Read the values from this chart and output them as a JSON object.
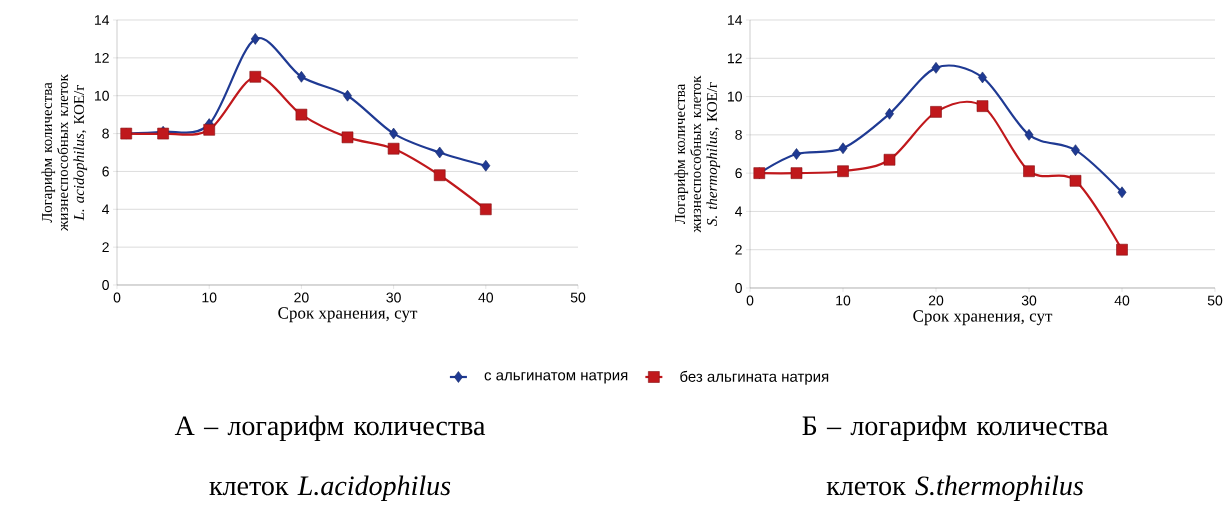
{
  "chart_data": [
    {
      "type": "line",
      "xlabel": "Срок хранения, сут",
      "ylabel": "Логарифм количества жизнеспособных клеток *L. acidophilus*, КОЕ/г",
      "x": [
        1,
        5,
        10,
        15,
        20,
        25,
        30,
        35,
        40
      ],
      "series": [
        {
          "name": "с альгинатом натрия",
          "color": "#1f3a93",
          "marker": "diamond",
          "values": [
            8,
            8.1,
            8.5,
            13,
            11,
            10,
            8,
            7,
            6.3
          ]
        },
        {
          "name": "без альгината натрия",
          "color": "#c0181c",
          "marker": "square",
          "values": [
            8,
            8,
            8.2,
            11,
            9,
            7.8,
            7.2,
            5.8,
            4
          ]
        }
      ],
      "xlim": [
        0,
        50
      ],
      "xticks": [
        0,
        10,
        20,
        30,
        40,
        50
      ],
      "ylim": [
        0,
        14
      ],
      "yticks": [
        0,
        2,
        4,
        6,
        8,
        10,
        12,
        14
      ],
      "grid": "y",
      "legend": "bottom",
      "annotations": [
        "А – логарифм количества клеток *L.acidophilus*"
      ]
    },
    {
      "type": "line",
      "xlabel": "Срок хранения, сут",
      "ylabel": "Логарифм количества жизнеспособных клеток *S. thermophilus*, КОЕ/г",
      "x": [
        1,
        5,
        10,
        15,
        20,
        25,
        30,
        35,
        40
      ],
      "series": [
        {
          "color": "#1f3a93",
          "marker": "diamond",
          "values": [
            6,
            7,
            7.3,
            9.1,
            11.5,
            11,
            8,
            7.2,
            5
          ]
        },
        {
          "color": "#c0181c",
          "marker": "square",
          "values": [
            6,
            6,
            6.1,
            6.7,
            9.2,
            9.5,
            6.1,
            5.6,
            2
          ]
        }
      ],
      "xlim": [
        0,
        50
      ],
      "xticks": [
        0,
        10,
        20,
        30,
        40,
        50
      ],
      "ylim": [
        0,
        14
      ],
      "yticks": [
        0,
        2,
        4,
        6,
        8,
        10,
        12,
        14
      ],
      "grid": "y",
      "annotations": [
        "Б – логарифм количества клеток *S.thermophilus*"
      ]
    }
  ]
}
